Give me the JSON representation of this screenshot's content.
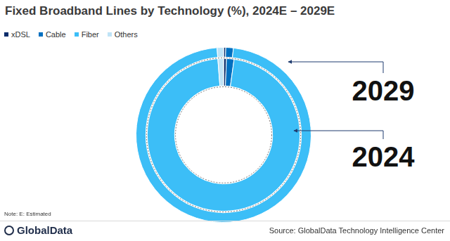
{
  "chart_data": {
    "type": "doughnut",
    "title": "Fixed Broadband Lines by Technology (%), 2024E – 2029E",
    "categories": [
      "xDSL",
      "Cable",
      "Fiber",
      "Others"
    ],
    "colors": [
      "#0b2d6b",
      "#0070c0",
      "#3cbef7",
      "#bfe3f6"
    ],
    "series": [
      {
        "name": "2029",
        "values": [
          0.4,
          1.4,
          97.0,
          1.2
        ]
      },
      {
        "name": "2024",
        "values": [
          0.6,
          1.6,
          96.6,
          1.2
        ]
      }
    ],
    "legend": "top-left",
    "note": "Note: E: Estimated",
    "source": "Source: GlobalData Technology Intelligence Center",
    "logo_text": "GlobalData"
  }
}
